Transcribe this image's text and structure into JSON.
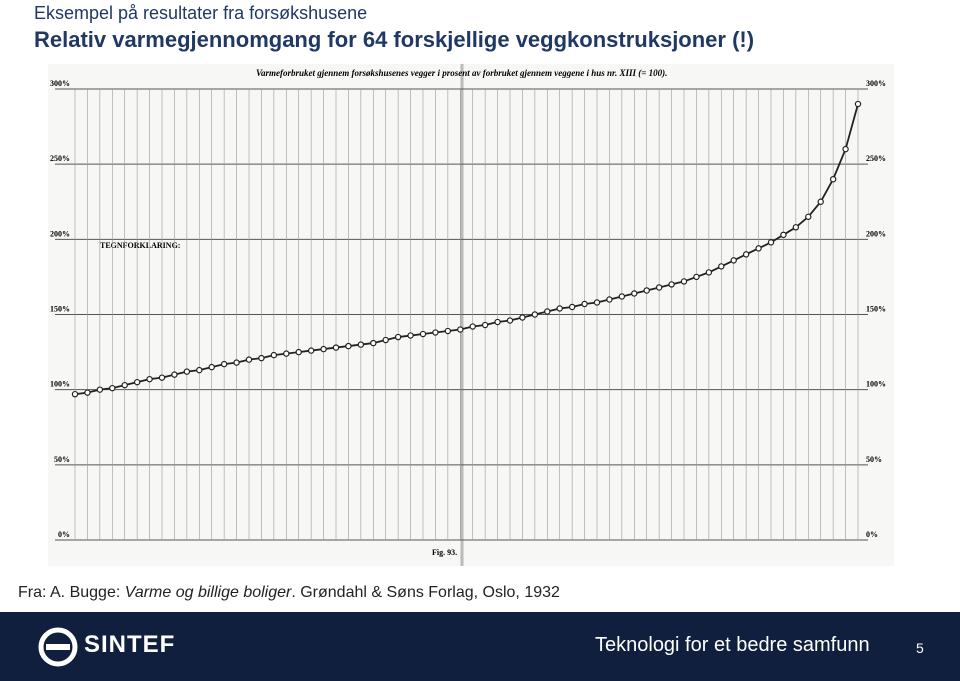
{
  "header": {
    "subtitle": "Eksempel på resultater fra forsøkshusene",
    "title": "Relativ varmegjennomgang for 64 forskjellige veggkonstruksjoner (!)"
  },
  "figure": {
    "chart_data": {
      "type": "line",
      "title": "Varmeforbruket gjennem forsøkshusenes vegger i prosent av forbruket gjennem veggene i hus nr. XIII (= 100).",
      "legend_title": "TEGNFORKLARING:",
      "caption": "Fig. 93.",
      "categories": [
        null,
        null,
        null,
        null,
        null,
        null,
        null,
        null,
        null,
        null,
        null,
        null,
        null,
        null,
        null,
        null,
        null,
        null,
        null,
        null,
        null,
        null,
        null,
        null,
        null,
        null,
        null,
        null,
        null,
        null,
        null,
        null,
        null,
        null,
        null,
        null,
        null,
        null,
        null,
        null,
        null,
        null,
        null,
        null,
        null,
        null,
        null,
        null,
        null,
        null,
        null,
        null,
        null,
        null,
        null,
        null,
        null,
        null,
        null,
        null,
        null,
        null,
        null,
        null
      ],
      "series": [
        {
          "color": "#222222",
          "values": [
            97,
            98,
            100,
            101,
            103,
            105,
            107,
            108,
            110,
            112,
            113,
            115,
            117,
            118,
            120,
            121,
            123,
            124,
            125,
            126,
            127,
            128,
            129,
            130,
            131,
            133,
            135,
            136,
            137,
            138,
            139,
            140,
            142,
            143,
            145,
            146,
            148,
            150,
            152,
            154,
            155,
            157,
            158,
            160,
            162,
            164,
            166,
            168,
            170,
            172,
            175,
            178,
            182,
            186,
            190,
            194,
            198,
            203,
            208,
            215,
            225,
            240,
            260,
            290
          ]
        }
      ],
      "ylim": [
        0,
        300
      ],
      "yticks": [
        {
          "value": 0,
          "label": "0%"
        },
        {
          "value": 50,
          "label": "50%"
        },
        {
          "value": 100,
          "label": "100%"
        },
        {
          "value": 150,
          "label": "150%"
        },
        {
          "value": 200,
          "label": "200%"
        },
        {
          "value": 250,
          "label": "250%"
        },
        {
          "value": 300,
          "label": "300%"
        }
      ],
      "grid": true
    }
  },
  "source": {
    "prefix": "Fra: A. Bugge: ",
    "work": "Varme og billige boliger",
    "rest": ". Grøndahl & Søns Forlag, Oslo, 1932"
  },
  "footer": {
    "logo": "SINTEF",
    "tagline": "Teknologi for et bedre samfunn",
    "page": "5"
  }
}
